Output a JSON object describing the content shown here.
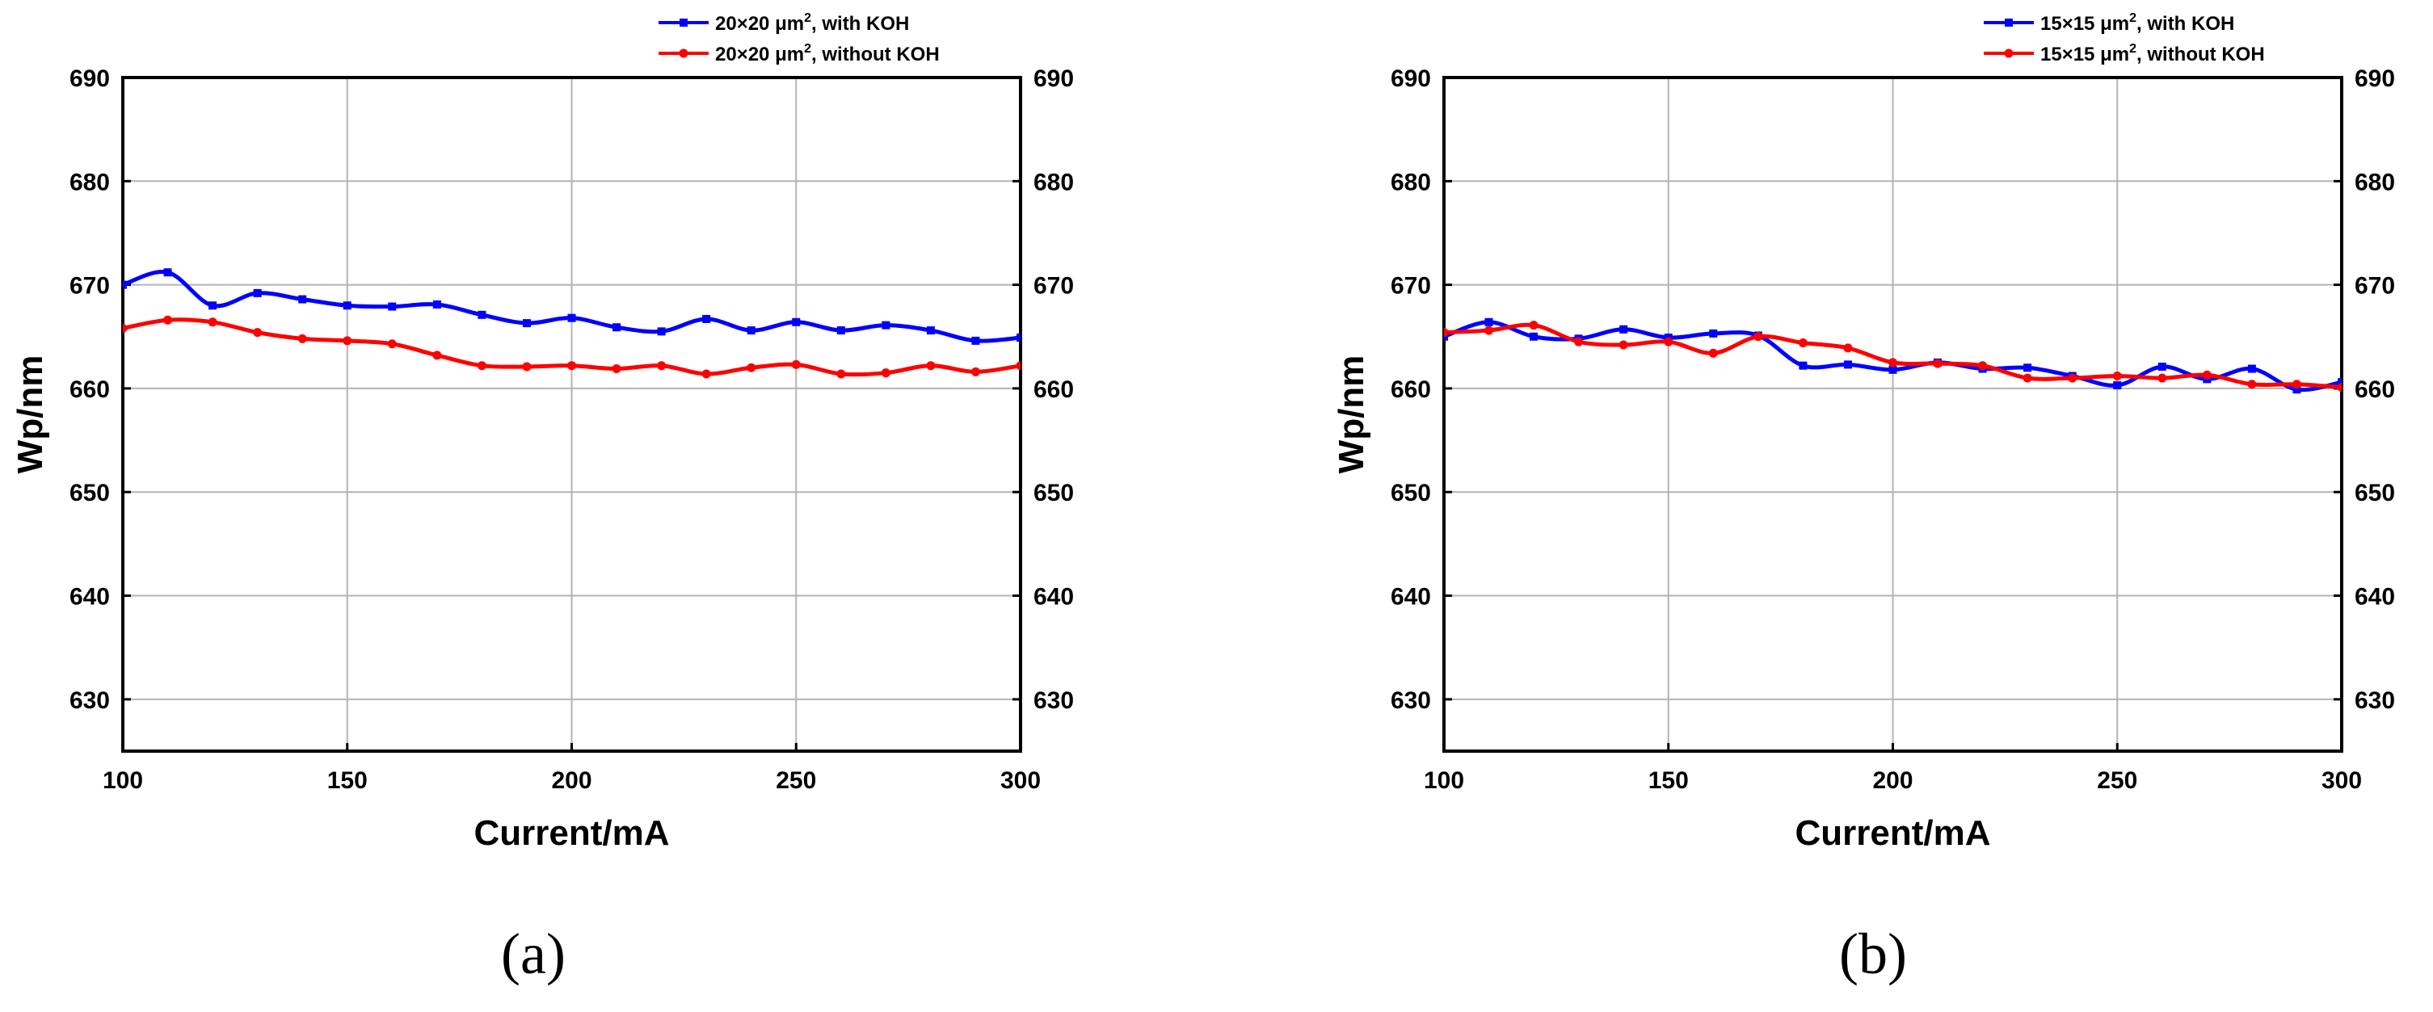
{
  "chart_data": [
    {
      "type": "line",
      "panel_label": "(a)",
      "xlabel": "Current/mA",
      "ylabel": "Wp/nm",
      "xlim": [
        100,
        300
      ],
      "ylim": [
        625,
        690
      ],
      "xticks": [
        100,
        150,
        200,
        250,
        300
      ],
      "yticks": [
        630,
        640,
        650,
        660,
        670,
        680,
        690
      ],
      "xtick_labels": [
        "100",
        "150",
        "200",
        "250",
        "300"
      ],
      "ytick_labels": [
        "630",
        "640",
        "650",
        "660",
        "670",
        "680",
        "690"
      ],
      "right_axis_mirrored": true,
      "grid": true,
      "legend_position": "top-right",
      "series": [
        {
          "name": "20×20 μm², with KOH",
          "legend_base": "20×20 μm",
          "legend_sup": "2",
          "legend_rest": ", with KOH",
          "color": "#0000ff",
          "marker": "square",
          "x": [
            100,
            110,
            120,
            130,
            140,
            150,
            160,
            170,
            180,
            190,
            200,
            210,
            220,
            230,
            240,
            250,
            260,
            270,
            280,
            290,
            300
          ],
          "y": [
            670.0,
            671.2,
            668.0,
            669.2,
            668.6,
            668.0,
            667.9,
            668.1,
            667.1,
            666.3,
            666.8,
            665.9,
            665.5,
            666.7,
            665.6,
            666.4,
            665.6,
            666.1,
            665.6,
            664.6,
            664.9
          ]
        },
        {
          "name": "20×20 μm², without KOH",
          "legend_base": "20×20 μm",
          "legend_sup": "2",
          "legend_rest": ", without KOH",
          "color": "#ff0000",
          "marker": "circle",
          "x": [
            100,
            110,
            120,
            130,
            140,
            150,
            160,
            170,
            180,
            190,
            200,
            210,
            220,
            230,
            240,
            250,
            260,
            270,
            280,
            290,
            300
          ],
          "y": [
            665.8,
            666.6,
            666.4,
            665.4,
            664.8,
            664.6,
            664.3,
            663.2,
            662.2,
            662.1,
            662.2,
            661.9,
            662.2,
            661.4,
            662.0,
            662.3,
            661.4,
            661.5,
            662.2,
            661.6,
            662.2
          ]
        }
      ]
    },
    {
      "type": "line",
      "panel_label": "(b)",
      "xlabel": "Current/mA",
      "ylabel": "Wp/nm",
      "xlim": [
        100,
        300
      ],
      "ylim": [
        625,
        690
      ],
      "xticks": [
        100,
        150,
        200,
        250,
        300
      ],
      "yticks": [
        630,
        640,
        650,
        660,
        670,
        680,
        690
      ],
      "xtick_labels": [
        "100",
        "150",
        "200",
        "250",
        "300"
      ],
      "ytick_labels": [
        "630",
        "640",
        "650",
        "660",
        "670",
        "680",
        "690"
      ],
      "right_axis_mirrored": true,
      "grid": true,
      "legend_position": "top-right",
      "series": [
        {
          "name": "15×15 μm², with KOH",
          "legend_base": "15×15 μm",
          "legend_sup": "2",
          "legend_rest": ", with KOH",
          "color": "#0000ff",
          "marker": "square",
          "x": [
            100,
            110,
            120,
            130,
            140,
            150,
            160,
            170,
            180,
            190,
            200,
            210,
            220,
            230,
            240,
            250,
            260,
            270,
            280,
            290,
            300
          ],
          "y": [
            665.0,
            666.4,
            665.0,
            664.8,
            665.7,
            664.9,
            665.3,
            665.1,
            662.2,
            662.3,
            661.8,
            662.5,
            661.9,
            662.0,
            661.2,
            660.3,
            662.1,
            660.9,
            661.9,
            659.9,
            660.6
          ]
        },
        {
          "name": "15×15 μm², without KOH",
          "legend_base": "15×15 μm",
          "legend_sup": "2",
          "legend_rest": ", without KOH",
          "color": "#ff0000",
          "marker": "circle",
          "x": [
            100,
            110,
            120,
            130,
            140,
            150,
            160,
            170,
            180,
            190,
            200,
            210,
            220,
            230,
            240,
            250,
            260,
            270,
            280,
            290,
            300
          ],
          "y": [
            665.4,
            665.6,
            666.1,
            664.5,
            664.2,
            664.5,
            663.4,
            665.0,
            664.4,
            663.9,
            662.5,
            662.4,
            662.2,
            661.0,
            661.0,
            661.2,
            661.0,
            661.3,
            660.4,
            660.4,
            660.1
          ]
        }
      ]
    }
  ]
}
